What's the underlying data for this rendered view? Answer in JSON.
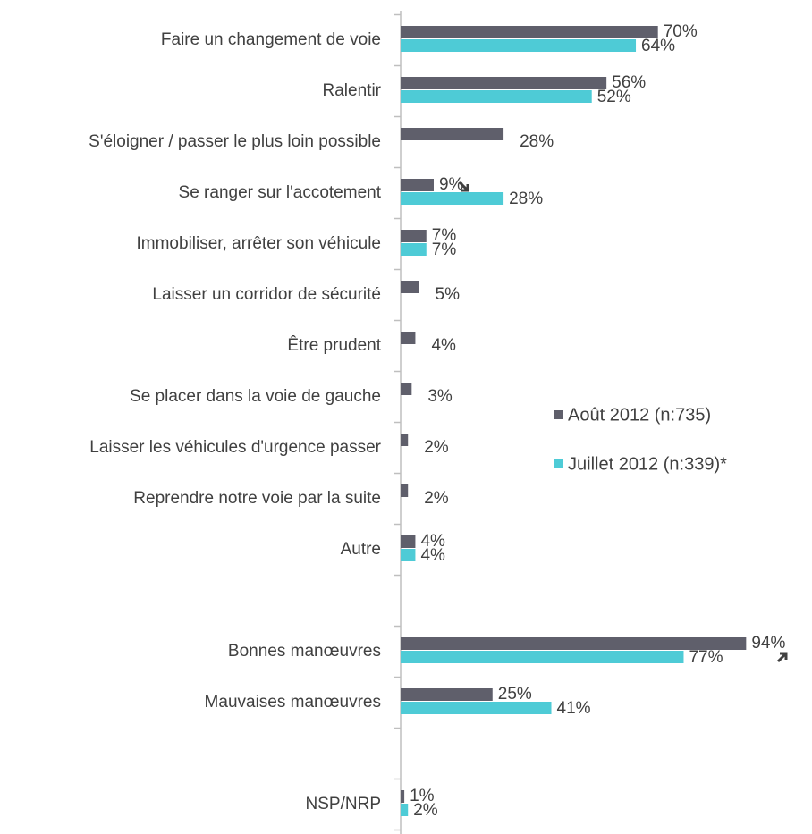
{
  "chart_data": {
    "type": "bar",
    "orientation": "horizontal",
    "categories": [
      "Faire un changement de voie",
      "Ralentir",
      "S'éloigner / passer le plus loin possible",
      "Se ranger sur l'accotement",
      "Immobiliser, arrêter son véhicule",
      "Laisser un corridor de sécurité",
      "Être prudent",
      "Se placer dans la voie de gauche",
      "Laisser les véhicules d'urgence passer",
      "Reprendre notre voie par la suite",
      "Autre",
      null,
      "Bonnes manœuvres",
      "Mauvaises manœuvres",
      null,
      "NSP/NRP"
    ],
    "series": [
      {
        "name": "Août 2012 (n:735)",
        "color": "#5f5f6b",
        "values": [
          70,
          56,
          28,
          9,
          7,
          5,
          4,
          3,
          2,
          2,
          4,
          null,
          94,
          25,
          null,
          1
        ],
        "value_labels": [
          "70%",
          "56%",
          "28%",
          "9%",
          "7%",
          "5%",
          "4%",
          "3%",
          "2%",
          "2%",
          "4%",
          null,
          "94%",
          "25%",
          null,
          "1%"
        ]
      },
      {
        "name": "Juillet 2012 (n:339)*",
        "color": "#4ecbd6",
        "values": [
          64,
          52,
          null,
          28,
          7,
          null,
          null,
          null,
          null,
          null,
          4,
          null,
          77,
          41,
          null,
          2
        ],
        "value_labels": [
          "64%",
          "52%",
          null,
          "28%",
          "7%",
          null,
          null,
          null,
          null,
          null,
          "4%",
          null,
          "77%",
          "41%",
          null,
          "2%"
        ]
      }
    ],
    "xlim": [
      0,
      100
    ],
    "legend": "right"
  }
}
